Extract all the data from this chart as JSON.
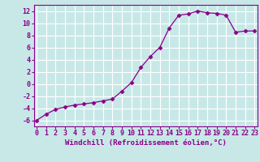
{
  "x": [
    0,
    1,
    2,
    3,
    4,
    5,
    6,
    7,
    8,
    9,
    10,
    11,
    12,
    13,
    14,
    15,
    16,
    17,
    18,
    19,
    20,
    21,
    22,
    23
  ],
  "y": [
    -6.0,
    -5.0,
    -4.2,
    -3.8,
    -3.5,
    -3.3,
    -3.1,
    -2.8,
    -2.5,
    -1.2,
    0.2,
    2.7,
    4.5,
    6.0,
    9.2,
    11.3,
    11.5,
    12.0,
    11.7,
    11.6,
    11.3,
    8.5,
    8.7,
    8.7
  ],
  "line_color": "#880088",
  "marker": "D",
  "markersize": 2.5,
  "linewidth": 0.9,
  "xlabel": "Windchill (Refroidissement éolien,°C)",
  "xlim": [
    -0.3,
    23.3
  ],
  "ylim": [
    -7,
    13
  ],
  "yticks": [
    -6,
    -4,
    -2,
    0,
    2,
    4,
    6,
    8,
    10,
    12
  ],
  "xticks": [
    0,
    1,
    2,
    3,
    4,
    5,
    6,
    7,
    8,
    9,
    10,
    11,
    12,
    13,
    14,
    15,
    16,
    17,
    18,
    19,
    20,
    21,
    22,
    23
  ],
  "bg_color": "#c8e8e8",
  "grid_color": "#b0d0d0",
  "tick_color": "#880088",
  "label_color": "#880088",
  "xlabel_fontsize": 6.5,
  "tick_fontsize": 6.0,
  "font_family": "monospace"
}
